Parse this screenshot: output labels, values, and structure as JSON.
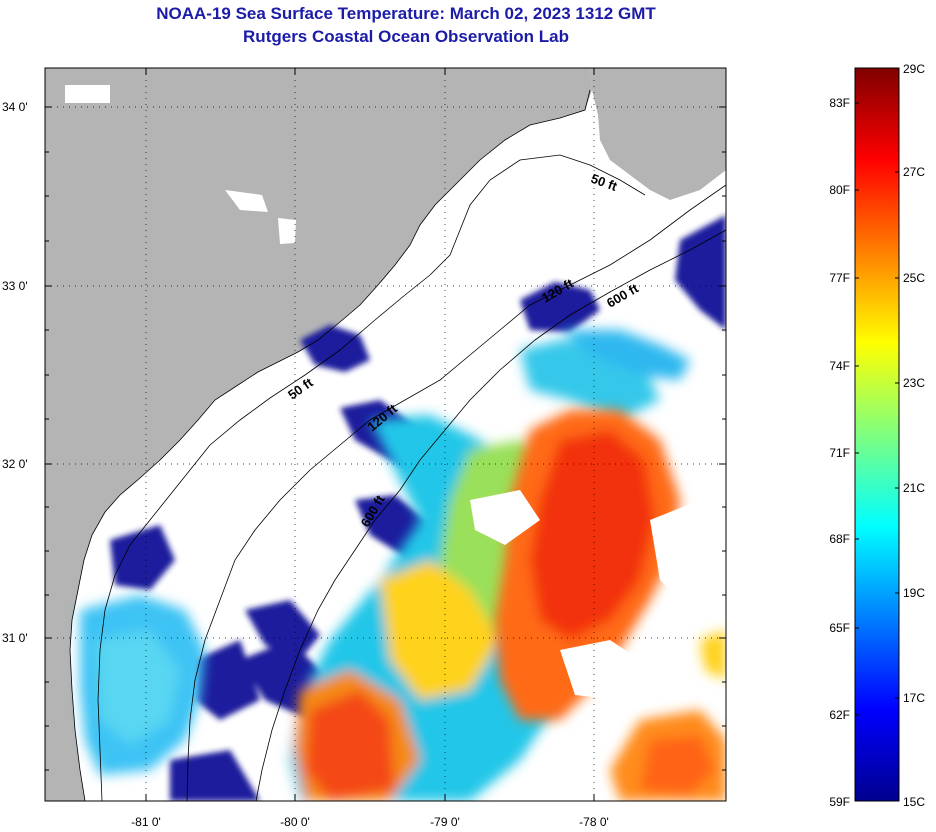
{
  "title": {
    "line1": "NOAA-19 Sea Surface Temperature:  March 02, 2023 1312 GMT",
    "line2": "Rutgers Coastal Ocean Observation Lab"
  },
  "axes": {
    "lat_labels": [
      "34 0'",
      "33 0'",
      "32 0'",
      "31 0'"
    ],
    "lon_labels": [
      "-81 0'",
      "-80 0'",
      "-79 0'",
      "-78 0'"
    ]
  },
  "isobaths": [
    "50 ft",
    "120 ft",
    "600 ft",
    "50 ft",
    "120 ft",
    "600 ft"
  ],
  "colorbar": {
    "f_labels": [
      "83F",
      "80F",
      "77F",
      "74F",
      "71F",
      "68F",
      "65F",
      "62F",
      "59F"
    ],
    "c_labels": [
      "29C",
      "27C",
      "25C",
      "23C",
      "21C",
      "19C",
      "17C",
      "15C"
    ],
    "colors": [
      "#00008f",
      "#0000ff",
      "#007fff",
      "#00ffff",
      "#7fff7f",
      "#ffff00",
      "#ff7f00",
      "#ff0000",
      "#7f0000"
    ]
  },
  "colors": {
    "land": "#b4b4b4",
    "title": "#1c1ca8",
    "no_data": "#ffffff"
  }
}
